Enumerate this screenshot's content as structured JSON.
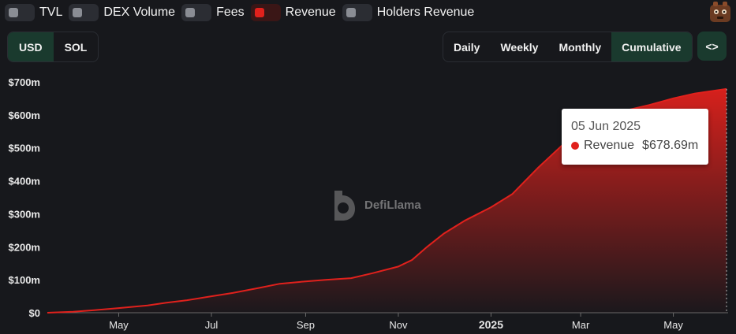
{
  "legend": {
    "items": [
      {
        "label": "TVL",
        "active": false
      },
      {
        "label": "DEX Volume",
        "active": false
      },
      {
        "label": "Fees",
        "active": false
      },
      {
        "label": "Revenue",
        "active": true
      },
      {
        "label": "Holders Revenue",
        "active": false
      }
    ]
  },
  "currency": {
    "options": [
      "USD",
      "SOL"
    ],
    "selected": "USD"
  },
  "range": {
    "options": [
      "Daily",
      "Weekly",
      "Monthly",
      "Cumulative"
    ],
    "selected": "Cumulative"
  },
  "embed_label": "<>",
  "watermark": "DefiLlama",
  "colors": {
    "accent": "#e0211c",
    "background": "#17181c",
    "active_button": "#1a3a2e"
  },
  "tooltip": {
    "date": "05 Jun 2025",
    "series": "Revenue",
    "value": "$678.69m"
  },
  "chart_data": {
    "type": "area",
    "series": [
      {
        "name": "Revenue",
        "color": "#e0211c",
        "points": [
          [
            "2024-03-15",
            0
          ],
          [
            "2024-04-01",
            3
          ],
          [
            "2024-04-15",
            8
          ],
          [
            "2024-05-01",
            14
          ],
          [
            "2024-05-20",
            22
          ],
          [
            "2024-06-01",
            30
          ],
          [
            "2024-06-15",
            38
          ],
          [
            "2024-07-01",
            50
          ],
          [
            "2024-07-15",
            60
          ],
          [
            "2024-08-01",
            75
          ],
          [
            "2024-08-15",
            88
          ],
          [
            "2024-09-01",
            95
          ],
          [
            "2024-09-15",
            100
          ],
          [
            "2024-10-01",
            105
          ],
          [
            "2024-10-15",
            120
          ],
          [
            "2024-11-01",
            140
          ],
          [
            "2024-11-10",
            160
          ],
          [
            "2024-11-20",
            200
          ],
          [
            "2024-12-01",
            240
          ],
          [
            "2024-12-15",
            280
          ],
          [
            "2025-01-01",
            320
          ],
          [
            "2025-01-15",
            360
          ],
          [
            "2025-02-01",
            440
          ],
          [
            "2025-02-15",
            500
          ],
          [
            "2025-03-01",
            560
          ],
          [
            "2025-03-15",
            590
          ],
          [
            "2025-04-01",
            615
          ],
          [
            "2025-04-15",
            630
          ],
          [
            "2025-05-01",
            650
          ],
          [
            "2025-05-15",
            665
          ],
          [
            "2025-06-05",
            678.69
          ]
        ]
      }
    ],
    "x_ticks": [
      {
        "date": "2024-05-01",
        "label": "May",
        "bold": false
      },
      {
        "date": "2024-07-01",
        "label": "Jul",
        "bold": false
      },
      {
        "date": "2024-09-01",
        "label": "Sep",
        "bold": false
      },
      {
        "date": "2024-11-01",
        "label": "Nov",
        "bold": false
      },
      {
        "date": "2025-01-01",
        "label": "2025",
        "bold": true
      },
      {
        "date": "2025-03-01",
        "label": "Mar",
        "bold": false
      },
      {
        "date": "2025-05-01",
        "label": "May",
        "bold": false
      }
    ],
    "y_ticks": [
      {
        "value": 0,
        "label": "$0"
      },
      {
        "value": 100,
        "label": "$100m"
      },
      {
        "value": 200,
        "label": "$200m"
      },
      {
        "value": 300,
        "label": "$300m"
      },
      {
        "value": 400,
        "label": "$400m"
      },
      {
        "value": 500,
        "label": "$500m"
      },
      {
        "value": 600,
        "label": "$600m"
      },
      {
        "value": 700,
        "label": "$700m"
      }
    ],
    "xlim": [
      "2024-03-15",
      "2025-06-05"
    ],
    "ylim": [
      0,
      700
    ],
    "grid": false
  }
}
